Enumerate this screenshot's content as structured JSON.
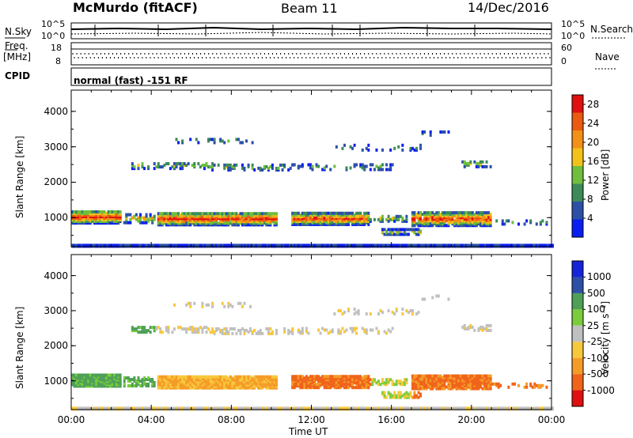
{
  "header": {
    "station": "McMurdo (fitACF)",
    "beam": "Beam 11",
    "date": "14/Dec/2016"
  },
  "top_panels": {
    "nsky_label": "N.Sky",
    "nsky_ticks": [
      "10^5",
      "10^0"
    ],
    "nsearch_label": "N.Search",
    "nsearch_ticks": [
      "10^5",
      "10^0"
    ],
    "freq_label_1": "Freq.",
    "freq_label_2": "[MHz]",
    "freq_ticks": [
      "18",
      "8"
    ],
    "nave_label": "Nave",
    "nave_ticks": [
      "60",
      "0"
    ],
    "cpid_label": "CPID",
    "cpid_text": "normal (fast) -151 RF"
  },
  "colors": {
    "power_scale": [
      "#0a1ef0",
      "#2c4fa8",
      "#3c8a5a",
      "#6fbe3e",
      "#f2c21a",
      "#f29018",
      "#ea5a10",
      "#e01010"
    ],
    "velocity_scale": [
      "#e01010",
      "#f0641a",
      "#f59c28",
      "#f8c83c",
      "#c0c0c0",
      "#7acc3c",
      "#4ea058",
      "#2c4fa8",
      "#1424d8"
    ]
  },
  "chart_data": [
    {
      "type": "heatmap",
      "name": "power-panel",
      "ylabel": "Slant Range [km]",
      "xlabel": "",
      "x_ticks": [
        "00:00",
        "04:00",
        "08:00",
        "12:00",
        "16:00",
        "20:00",
        "00:00"
      ],
      "y_ticks": [
        "1000",
        "2000",
        "3000",
        "4000"
      ],
      "ylim": [
        180,
        4600
      ],
      "xlim": [
        0,
        24
      ],
      "colorbar": {
        "label": "Power [dB]",
        "ticks": [
          "4",
          "8",
          "12",
          "16",
          "20",
          "24",
          "28"
        ],
        "range": [
          0,
          30
        ]
      }
    },
    {
      "type": "heatmap",
      "name": "velocity-panel",
      "ylabel": "Slant Range [km]",
      "xlabel": "Time UT",
      "x_ticks": [
        "00:00",
        "04:00",
        "08:00",
        "12:00",
        "16:00",
        "20:00",
        "00:00"
      ],
      "y_ticks": [
        "1000",
        "2000",
        "3000",
        "4000"
      ],
      "ylim": [
        180,
        4600
      ],
      "xlim": [
        0,
        24
      ],
      "colorbar": {
        "label": "Velocity [m s⁻¹]",
        "ticks": [
          "1000",
          "500",
          "100",
          "25",
          "-25",
          "-100",
          "-500",
          "-1000"
        ]
      }
    }
  ]
}
